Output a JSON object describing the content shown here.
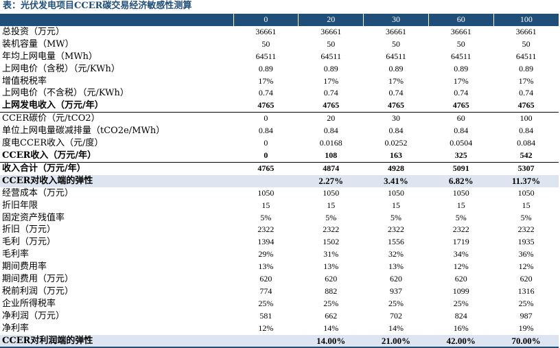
{
  "title": "表：光伏发电项目CCER碳交易经济敏感性测算",
  "header": [
    "",
    "0",
    "20",
    "30",
    "60",
    "100"
  ],
  "rows": [
    {
      "label": "总投资（万元）",
      "values": [
        "36661",
        "36661",
        "36661",
        "36661",
        "36661"
      ],
      "style": ""
    },
    {
      "label": "装机容量（MW）",
      "values": [
        "50",
        "50",
        "50",
        "50",
        "50"
      ],
      "style": ""
    },
    {
      "label": "年均上网电量（MWh）",
      "values": [
        "64511",
        "64511",
        "64511",
        "64511",
        "64511"
      ],
      "style": ""
    },
    {
      "label": "上网电价（含税）（元/KWh）",
      "values": [
        "0.89",
        "0.89",
        "0.89",
        "0.89",
        "0.89"
      ],
      "style": ""
    },
    {
      "label": "增值税税率",
      "values": [
        "17%",
        "17%",
        "17%",
        "17%",
        "17%"
      ],
      "style": ""
    },
    {
      "label": "上网电价（不含税）（元/KWh）",
      "values": [
        "0.74",
        "0.74",
        "0.74",
        "0.74",
        "0.74"
      ],
      "style": ""
    },
    {
      "label": "上网发电收入（万元/年）",
      "values": [
        "4765",
        "4765",
        "4765",
        "4765",
        "4765"
      ],
      "style": "bold bline"
    },
    {
      "label": "CCER碳价（元/tCO2）",
      "values": [
        "0",
        "20",
        "30",
        "60",
        "100"
      ],
      "style": ""
    },
    {
      "label": "单位上网电量碳减排量（tCO2e/MWh）",
      "values": [
        "0.84",
        "0.84",
        "0.84",
        "0.84",
        "0.84"
      ],
      "style": ""
    },
    {
      "label": "度电CCER收入（元/度）",
      "values": [
        "0",
        "0.0168",
        "0.0252",
        "0.0504",
        "0.084"
      ],
      "style": ""
    },
    {
      "label": "CCER收入（万元/年）",
      "values": [
        "0",
        "108",
        "163",
        "325",
        "542"
      ],
      "style": "bold bline"
    },
    {
      "label": "收入合计（万元/年）",
      "values": [
        "4765",
        "4874",
        "4928",
        "5091",
        "5307"
      ],
      "style": "bold"
    },
    {
      "label": "CCER对收入端的弹性",
      "values": [
        "",
        "2.27%",
        "3.41%",
        "6.82%",
        "11.37%"
      ],
      "style": "elastic"
    },
    {
      "label": "经营成本（万元）",
      "values": [
        "1050",
        "1050",
        "1050",
        "1050",
        "1050"
      ],
      "style": ""
    },
    {
      "label": "折旧年限",
      "values": [
        "15",
        "15",
        "15",
        "15",
        "15"
      ],
      "style": ""
    },
    {
      "label": "固定资产残值率",
      "values": [
        "5%",
        "5%",
        "5%",
        "5%",
        "5%"
      ],
      "style": ""
    },
    {
      "label": "折旧（万元）",
      "values": [
        "2322",
        "2322",
        "2322",
        "2322",
        "2322"
      ],
      "style": ""
    },
    {
      "label": "毛利（万元）",
      "values": [
        "1394",
        "1502",
        "1556",
        "1719",
        "1935"
      ],
      "style": ""
    },
    {
      "label": "毛利率",
      "values": [
        "29%",
        "31%",
        "32%",
        "34%",
        "36%"
      ],
      "style": ""
    },
    {
      "label": "期间费用率",
      "values": [
        "13%",
        "13%",
        "13%",
        "12%",
        "12%"
      ],
      "style": ""
    },
    {
      "label": "期间费用（万元）",
      "values": [
        "620",
        "620",
        "620",
        "620",
        "620"
      ],
      "style": ""
    },
    {
      "label": "税前利润（万元）",
      "values": [
        "774",
        "882",
        "937",
        "1099",
        "1316"
      ],
      "style": ""
    },
    {
      "label": "企业所得税率",
      "values": [
        "25%",
        "25%",
        "25%",
        "25%",
        "25%"
      ],
      "style": ""
    },
    {
      "label": "净利润（万元）",
      "values": [
        "581",
        "662",
        "702",
        "824",
        "987"
      ],
      "style": ""
    },
    {
      "label": "净利率",
      "values": [
        "12%",
        "14%",
        "14%",
        "16%",
        "19%"
      ],
      "style": ""
    },
    {
      "label": "CCER对利润端的弹性",
      "values": [
        "",
        "14.00%",
        "21.00%",
        "42.00%",
        "70.00%"
      ],
      "style": "elastic dark-b"
    }
  ]
}
